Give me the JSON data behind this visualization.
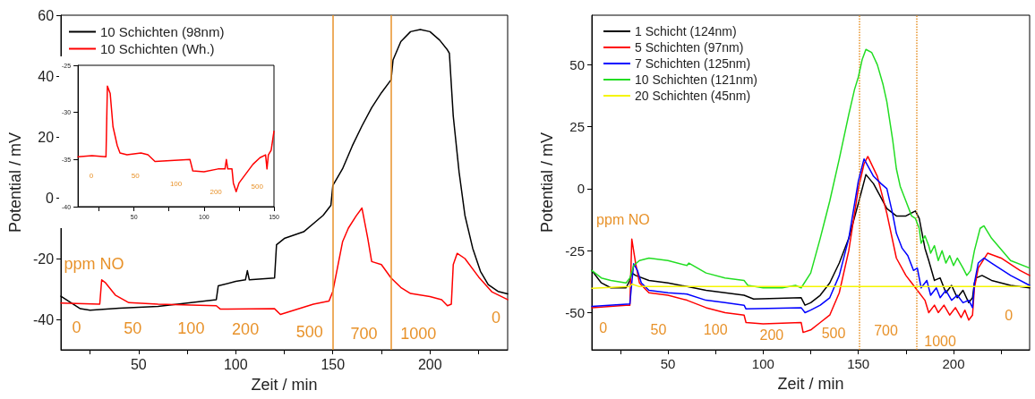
{
  "chart_data": [
    {
      "type": "line",
      "xlabel": "Zeit / min",
      "ylabel": "Potential / mV",
      "xlim": [
        10,
        240
      ],
      "ylim": [
        -50,
        60
      ],
      "xticks": [
        {
          "value": 25,
          "label": null
        },
        50,
        {
          "value": 75,
          "label": null
        },
        100,
        {
          "value": 125,
          "label": null
        },
        150,
        {
          "value": 175,
          "label": null
        },
        200,
        {
          "value": 225,
          "label": null
        }
      ],
      "yticks": [
        -40,
        -20,
        0,
        20,
        40,
        60
      ],
      "grid": false,
      "legend": "top left",
      "marker": "none",
      "line_style": "solid",
      "series": [
        {
          "name": "10 Schichten (98nm)",
          "color": "#000000",
          "x": [
            10,
            20,
            25,
            40,
            60,
            90,
            91,
            100,
            105,
            106,
            107,
            120,
            121,
            125,
            135,
            145,
            149,
            150,
            155,
            160,
            165,
            170,
            175,
            180,
            181,
            185,
            190,
            195,
            200,
            205,
            209,
            210,
            212,
            215,
            218,
            222,
            226,
            230,
            235,
            240
          ],
          "values": [
            -32.4,
            -36.5,
            -37,
            -36.3,
            -35.7,
            -33.5,
            -29,
            -27.5,
            -27,
            -24,
            -27,
            -26.4,
            -15.5,
            -13.4,
            -11.2,
            -5.8,
            -2.5,
            4,
            9.5,
            17,
            23.6,
            29.6,
            34.5,
            38.8,
            45.3,
            51.3,
            54.6,
            55.3,
            54.6,
            51.8,
            48.6,
            47.5,
            26.8,
            8.4,
            -5.8,
            -16.6,
            -24.2,
            -28.6,
            -30.8,
            -31.6
          ]
        },
        {
          "name": "10 Schichten (Wh.)",
          "color": "#ff0000",
          "x": [
            10,
            30,
            31,
            33,
            38,
            45,
            60,
            90,
            92,
            120,
            123,
            130,
            140,
            148,
            150,
            155,
            158,
            162,
            165,
            168,
            170,
            175,
            180,
            185,
            190,
            200,
            206,
            209,
            211,
            212,
            214,
            218,
            225,
            232,
            240
          ],
          "values": [
            -34.6,
            -35,
            -27,
            -28,
            -32,
            -34.5,
            -35,
            -35.5,
            -36.6,
            -36.5,
            -38.4,
            -37,
            -35,
            -34,
            -30.8,
            -14.5,
            -10,
            -6,
            -3.4,
            -13.4,
            -21,
            -22,
            -26.4,
            -29.5,
            -31.5,
            -32.5,
            -33.5,
            -35.5,
            -35,
            -22,
            -18.3,
            -20,
            -26,
            -31,
            -33.5
          ]
        }
      ],
      "ref_lines": [
        {
          "axis": "x",
          "value": 150,
          "color": "#e8922a",
          "line_style": "solid"
        },
        {
          "axis": "x",
          "value": 180,
          "color": "#e8922a",
          "line_style": "solid"
        }
      ],
      "annotations": [
        "ppm NO",
        "0",
        "50",
        "100",
        "200",
        "500",
        "700",
        "1000",
        "0"
      ]
    },
    {
      "type": "line",
      "xlim": [
        10,
        150
      ],
      "ylim": [
        -40,
        -25
      ],
      "xticks": [
        {
          "value": 25,
          "label": null
        },
        50,
        {
          "value": 75,
          "label": null
        },
        100,
        {
          "value": 125,
          "label": null
        },
        150
      ],
      "yticks": [
        -40,
        -35,
        -30,
        -25
      ],
      "grid": false,
      "marker": "none",
      "line_style": "solid",
      "series": [
        {
          "color": "#ff0000",
          "x": [
            10,
            20,
            30,
            31,
            33,
            35,
            38,
            40,
            45,
            55,
            60,
            65,
            90,
            92,
            100,
            110,
            115,
            116,
            117,
            120,
            121,
            123,
            125,
            130,
            135,
            140,
            144,
            145,
            146,
            148,
            150
          ],
          "values": [
            -34.7,
            -34.6,
            -34.7,
            -27.2,
            -28,
            -31.5,
            -33.5,
            -34.3,
            -34.5,
            -34.3,
            -34.5,
            -35.2,
            -35,
            -36.2,
            -36.3,
            -36,
            -36,
            -35,
            -36,
            -36,
            -37.5,
            -38.4,
            -37.5,
            -36.5,
            -35.5,
            -34.8,
            -34.5,
            -36,
            -34.5,
            -34,
            -32
          ]
        }
      ],
      "annotations": [
        "0",
        "50",
        "100",
        "200",
        "500"
      ]
    },
    {
      "type": "line",
      "xlabel": "Zeit / min",
      "ylabel": "Potential / mV",
      "xlim": [
        10,
        240
      ],
      "ylim": [
        -65,
        70
      ],
      "xticks": [
        {
          "value": 25,
          "label": null
        },
        50,
        {
          "value": 75,
          "label": null
        },
        100,
        {
          "value": 125,
          "label": null
        },
        150,
        {
          "value": 175,
          "label": null
        },
        200,
        {
          "value": 225,
          "label": null
        }
      ],
      "yticks": [
        -50,
        -25,
        0,
        25,
        50
      ],
      "grid": false,
      "legend": "top left",
      "marker": "none",
      "line_style": "solid",
      "series": [
        {
          "name": "1 Schicht (124nm)",
          "color": "#000000",
          "x": [
            10,
            15,
            20,
            28,
            30,
            31,
            33,
            40,
            50,
            60,
            70,
            80,
            90,
            95,
            120,
            122,
            125,
            130,
            135,
            140,
            145,
            150,
            154,
            158,
            165,
            170,
            175,
            180,
            182,
            185,
            187,
            190,
            193,
            196,
            199,
            202,
            205,
            208,
            210,
            211,
            212,
            215,
            220,
            230,
            240
          ],
          "values": [
            -33,
            -38,
            -40,
            -40,
            -37,
            -34,
            -35,
            -37,
            -38,
            -39.5,
            -41,
            -42,
            -43,
            -44.5,
            -44,
            -47,
            -46,
            -43,
            -38,
            -30,
            -20,
            -6,
            5.7,
            2,
            -8,
            -11,
            -11,
            -9,
            -12,
            -24,
            -29,
            -37,
            -36,
            -42,
            -39,
            -44,
            -41,
            -46,
            -44,
            -38,
            -36,
            -35,
            -37,
            -39,
            -40
          ]
        },
        {
          "name": "5 Schichten (97nm)",
          "color": "#ff0000",
          "x": [
            10,
            28,
            30,
            31,
            33,
            35,
            40,
            50,
            60,
            70,
            80,
            90,
            91,
            100,
            120,
            121,
            125,
            130,
            135,
            140,
            145,
            150,
            153,
            155,
            160,
            165,
            170,
            175,
            180,
            185,
            187,
            190,
            192,
            195,
            198,
            201,
            204,
            206,
            208,
            210,
            211,
            213,
            218,
            225,
            235,
            240
          ],
          "values": [
            -48,
            -47,
            -47,
            -20.3,
            -30,
            -38,
            -42,
            -43,
            -45,
            -48,
            -50,
            -51,
            -54,
            -54.5,
            -54,
            -58,
            -57,
            -54,
            -51,
            -42,
            -25,
            0,
            10,
            13,
            5,
            -10,
            -28,
            -35,
            -40,
            -45,
            -50,
            -47,
            -50,
            -47,
            -51,
            -48,
            -52,
            -49,
            -53,
            -51,
            -40,
            -32,
            -26,
            -28,
            -33,
            -35
          ]
        },
        {
          "name": "7 Schichten (125nm)",
          "color": "#0000ff",
          "x": [
            10,
            30,
            31,
            32,
            34,
            36,
            40,
            50,
            60,
            70,
            80,
            90,
            91,
            120,
            122,
            125,
            130,
            135,
            140,
            145,
            150,
            153,
            158,
            162,
            165,
            168,
            170,
            173,
            176,
            179,
            181,
            183,
            186,
            188,
            191,
            193,
            196,
            199,
            202,
            205,
            208,
            210,
            211,
            213,
            216,
            220,
            230,
            240
          ],
          "values": [
            -47.5,
            -46.5,
            -38,
            -30.3,
            -33,
            -38,
            -41,
            -42,
            -42.5,
            -45,
            -46,
            -47,
            -48.5,
            -48,
            -50,
            -49,
            -47,
            -44,
            -35,
            -20,
            3,
            12,
            5,
            2,
            0,
            -10,
            -18,
            -24,
            -27,
            -33,
            -32,
            -40,
            -37,
            -43,
            -40,
            -44,
            -41,
            -45,
            -43,
            -46,
            -45,
            -48,
            -38,
            -30,
            -28,
            -30,
            -35,
            -39
          ]
        },
        {
          "name": "10 Schichten (121nm)",
          "color": "#22dd22",
          "x": [
            10,
            15,
            20,
            28,
            30,
            32,
            35,
            40,
            50,
            60,
            61,
            70,
            80,
            90,
            92,
            100,
            110,
            117,
            120,
            125,
            130,
            135,
            140,
            145,
            148,
            150,
            152,
            154,
            157,
            160,
            163,
            165,
            168,
            170,
            172,
            175,
            178,
            180,
            182,
            183,
            185,
            187,
            188,
            190,
            192,
            194,
            196,
            198,
            200,
            202,
            205,
            207,
            209,
            211,
            214,
            216,
            220,
            230,
            240
          ],
          "values": [
            -33,
            -36,
            -37,
            -38,
            -36,
            -31,
            -29,
            -28,
            -29,
            -31,
            -30,
            -34,
            -36,
            -37,
            -39,
            -40,
            -40,
            -39,
            -40,
            -34,
            -20,
            -5,
            12,
            30,
            40,
            45,
            52,
            56.2,
            55,
            50,
            42,
            35,
            20,
            8,
            1,
            -5,
            -11,
            -12,
            -16,
            -22,
            -19,
            -23,
            -26,
            -23,
            -29,
            -25,
            -30,
            -27,
            -31,
            -28,
            -32,
            -35,
            -33,
            -25,
            -16,
            -15,
            -20,
            -29,
            -32
          ]
        },
        {
          "name": "20 Schichten (45nm)",
          "color": "#f5f500",
          "x": [
            10,
            30,
            31,
            35,
            100,
            150,
            240
          ],
          "values": [
            -40.2,
            -39.5,
            -38.5,
            -39.5,
            -39.5,
            -39.5,
            -39.5
          ]
        }
      ],
      "ref_lines": [
        {
          "axis": "x",
          "value": 150.7,
          "color": "#e8922a",
          "line_style": "dotted"
        },
        {
          "axis": "x",
          "value": 180.4,
          "color": "#e8922a",
          "line_style": "dotted"
        }
      ],
      "annotations": [
        "ppm NO",
        "0",
        "50",
        "100",
        "200",
        "500",
        "700",
        "1000",
        "0"
      ]
    }
  ]
}
